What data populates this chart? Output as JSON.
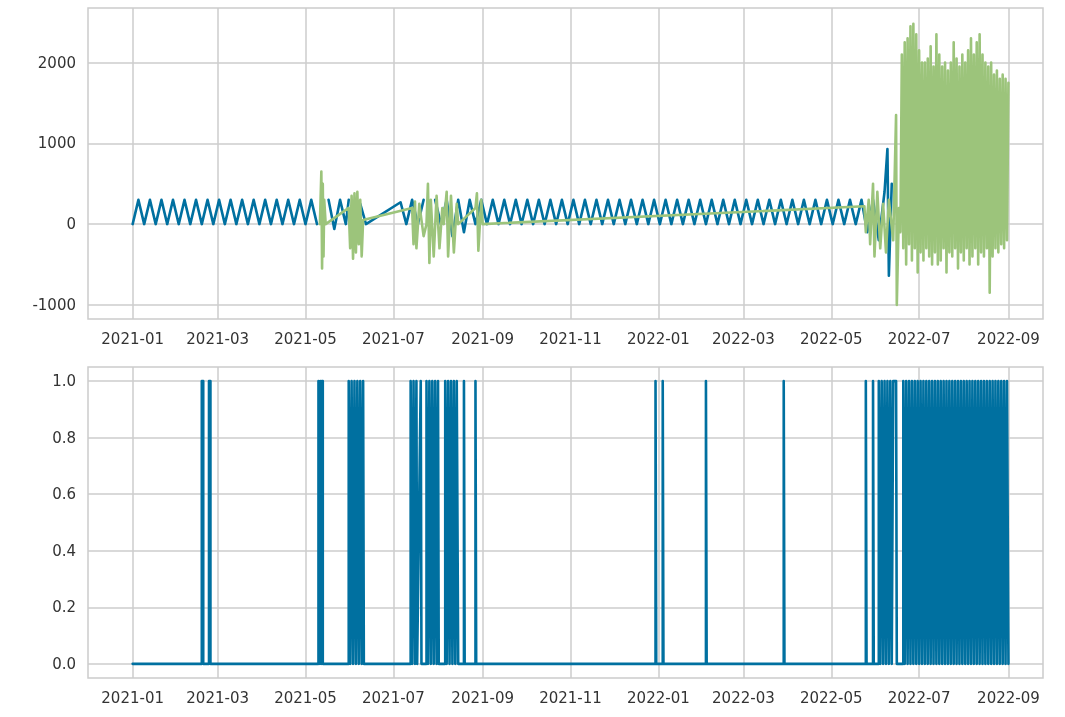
{
  "chart_data": [
    {
      "type": "line",
      "grid": true,
      "marker": "none",
      "xlim": [
        "2020-12-01",
        "2022-09-25"
      ],
      "xticks": [
        "2021-01",
        "2021-03",
        "2021-05",
        "2021-07",
        "2021-09",
        "2021-11",
        "2022-01",
        "2022-03",
        "2022-05",
        "2022-07",
        "2022-09"
      ],
      "ylim": [
        -1175,
        2675
      ],
      "yticks": [
        -1000,
        0,
        1000,
        2000
      ],
      "series": [
        {
          "color": "#0070a0",
          "x": [
            "2021-01-01",
            "2021-01-05",
            "2021-01-09",
            "2021-01-13",
            "2021-01-17",
            "2021-01-21",
            "2021-01-25",
            "2021-01-29",
            "2021-02-02",
            "2021-02-06",
            "2021-02-10",
            "2021-02-14",
            "2021-02-18",
            "2021-02-22",
            "2021-02-26",
            "2021-03-02",
            "2021-03-06",
            "2021-03-10",
            "2021-03-14",
            "2021-03-18",
            "2021-03-22",
            "2021-03-26",
            "2021-03-30",
            "2021-04-03",
            "2021-04-07",
            "2021-04-11",
            "2021-04-15",
            "2021-04-19",
            "2021-04-23",
            "2021-04-27",
            "2021-05-01",
            "2021-05-05",
            "2021-05-09",
            "2021-05-13",
            "2021-05-17",
            "2021-05-21",
            "2021-05-25",
            "2021-05-29",
            "2021-05-31",
            "2021-06-04",
            "2021-06-08",
            "2021-06-12",
            "2021-07-06",
            "2021-07-10",
            "2021-07-14",
            "2021-07-18",
            "2021-07-22",
            "2021-07-26",
            "2021-07-30",
            "2021-08-03",
            "2021-08-07",
            "2021-08-11",
            "2021-08-15",
            "2021-08-19",
            "2021-08-23",
            "2021-08-27",
            "2021-08-31",
            "2021-09-04",
            "2021-09-08",
            "2021-09-12",
            "2021-09-16",
            "2021-09-20",
            "2021-09-24",
            "2021-09-28",
            "2021-10-02",
            "2021-10-06",
            "2021-10-10",
            "2021-10-14",
            "2021-10-18",
            "2021-10-22",
            "2021-10-26",
            "2021-10-30",
            "2021-11-03",
            "2021-11-07",
            "2021-11-11",
            "2021-11-15",
            "2021-11-19",
            "2021-11-23",
            "2021-11-27",
            "2021-12-01",
            "2021-12-05",
            "2021-12-09",
            "2021-12-13",
            "2021-12-17",
            "2021-12-21",
            "2021-12-25",
            "2021-12-29",
            "2022-01-02",
            "2022-01-06",
            "2022-01-10",
            "2022-01-14",
            "2022-01-18",
            "2022-01-22",
            "2022-01-26",
            "2022-01-30",
            "2022-02-03",
            "2022-02-07",
            "2022-02-11",
            "2022-02-15",
            "2022-02-19",
            "2022-02-23",
            "2022-02-27",
            "2022-03-03",
            "2022-03-07",
            "2022-03-11",
            "2022-03-15",
            "2022-03-19",
            "2022-03-23",
            "2022-03-27",
            "2022-03-31",
            "2022-04-04",
            "2022-04-08",
            "2022-04-12",
            "2022-04-16",
            "2022-04-20",
            "2022-04-24",
            "2022-04-28",
            "2022-05-02",
            "2022-05-06",
            "2022-05-10",
            "2022-05-14",
            "2022-05-18",
            "2022-05-22",
            "2022-05-26",
            "2022-05-30",
            "2022-06-03",
            "2022-06-07",
            "2022-06-09",
            "2022-06-10",
            "2022-06-12"
          ],
          "values": [
            0,
            300,
            0,
            300,
            0,
            300,
            0,
            300,
            0,
            300,
            0,
            300,
            0,
            300,
            0,
            300,
            0,
            300,
            0,
            300,
            0,
            300,
            0,
            300,
            0,
            300,
            0,
            300,
            0,
            300,
            0,
            300,
            0,
            null,
            300,
            -60,
            300,
            0,
            300,
            null,
            250,
            0,
            270,
            0,
            300,
            0,
            300,
            null,
            300,
            0,
            300,
            -150,
            300,
            -100,
            300,
            0,
            300,
            0,
            300,
            0,
            300,
            0,
            300,
            0,
            300,
            0,
            300,
            0,
            300,
            0,
            300,
            0,
            300,
            0,
            300,
            0,
            300,
            0,
            300,
            0,
            300,
            0,
            300,
            0,
            300,
            0,
            300,
            0,
            300,
            0,
            300,
            0,
            300,
            0,
            300,
            0,
            300,
            0,
            300,
            0,
            300,
            0,
            300,
            0,
            300,
            0,
            300,
            0,
            300,
            0,
            300,
            0,
            300,
            0,
            300,
            0,
            300,
            0,
            300,
            0,
            300,
            0,
            300,
            -100,
            300,
            -200,
            400,
            930,
            -640,
            500
          ]
        },
        {
          "color": "#9cc47b",
          "x": [
            "2021-05-11",
            "2021-05-12",
            "2021-05-12T12:00",
            "2021-05-13",
            "2021-05-13T12:00",
            "2021-05-14",
            "2021-05-15",
            "2021-05-31",
            "2021-06-01",
            "2021-06-02",
            "2021-06-03",
            "2021-06-04",
            "2021-06-05",
            "2021-06-06",
            "2021-06-07",
            "2021-06-08",
            "2021-06-09",
            "2021-06-10",
            "2021-07-14",
            "2021-07-15",
            "2021-07-16",
            "2021-07-17",
            "2021-07-19",
            "2021-07-22",
            "2021-07-24",
            "2021-07-25",
            "2021-07-26",
            "2021-07-27",
            "2021-07-29",
            "2021-07-31",
            "2021-08-02",
            "2021-08-04",
            "2021-08-05",
            "2021-08-07",
            "2021-08-08",
            "2021-08-10",
            "2021-08-12",
            "2021-08-14",
            "2021-08-15",
            "2021-08-27",
            "2021-08-28",
            "2021-08-29",
            "2021-08-31",
            "2021-09-01",
            "2022-05-24",
            "2022-05-25",
            "2022-05-27",
            "2022-05-28",
            "2022-05-30",
            "2022-05-31",
            "2022-06-02",
            "2022-06-04",
            "2022-06-06",
            "2022-06-08",
            "2022-06-10",
            "2022-06-13",
            "2022-06-15",
            "2022-06-15T12:00",
            "2022-06-17",
            "2022-06-18",
            "2022-06-19",
            "2022-06-20",
            "2022-06-21",
            "2022-06-22",
            "2022-06-23",
            "2022-06-24",
            "2022-06-25",
            "2022-06-26",
            "2022-06-27",
            "2022-06-28",
            "2022-06-29",
            "2022-06-30",
            "2022-07-01",
            "2022-07-02",
            "2022-07-03",
            "2022-07-04",
            "2022-07-05",
            "2022-07-06",
            "2022-07-07",
            "2022-07-08",
            "2022-07-09",
            "2022-07-10",
            "2022-07-11",
            "2022-07-12",
            "2022-07-13",
            "2022-07-14",
            "2022-07-15",
            "2022-07-16",
            "2022-07-17",
            "2022-07-18",
            "2022-07-19",
            "2022-07-20",
            "2022-07-21",
            "2022-07-22",
            "2022-07-23",
            "2022-07-24",
            "2022-07-25",
            "2022-07-26",
            "2022-07-27",
            "2022-07-28",
            "2022-07-29",
            "2022-07-30",
            "2022-07-31",
            "2022-08-01",
            "2022-08-02",
            "2022-08-03",
            "2022-08-04",
            "2022-08-05",
            "2022-08-06",
            "2022-08-07",
            "2022-08-08",
            "2022-08-09",
            "2022-08-10",
            "2022-08-11",
            "2022-08-12",
            "2022-08-13",
            "2022-08-14",
            "2022-08-15",
            "2022-08-16",
            "2022-08-17",
            "2022-08-18",
            "2022-08-19",
            "2022-08-20",
            "2022-08-21",
            "2022-08-22",
            "2022-08-23",
            "2022-08-24",
            "2022-08-25",
            "2022-08-26",
            "2022-08-27",
            "2022-08-28",
            "2022-08-29",
            "2022-08-30",
            "2022-08-31",
            "2022-09-01"
          ],
          "values": [
            0,
            650,
            -550,
            500,
            -400,
            300,
            0,
            200,
            -300,
            350,
            -430,
            380,
            -350,
            400,
            -250,
            300,
            -400,
            50,
            200,
            -250,
            280,
            -300,
            250,
            -150,
            0,
            500,
            -480,
            300,
            -400,
            350,
            -300,
            200,
            0,
            400,
            -400,
            350,
            -350,
            250,
            0,
            200,
            380,
            -330,
            300,
            0,
            220,
            -100,
            300,
            -250,
            500,
            -400,
            400,
            -300,
            250,
            -350,
            300,
            -200,
            1350,
            -1000,
            200,
            -100,
            2100,
            -300,
            2250,
            -500,
            2300,
            -250,
            2450,
            -450,
            2480,
            -300,
            2350,
            -600,
            2150,
            -350,
            2000,
            -450,
            2000,
            -300,
            2050,
            -400,
            2200,
            -500,
            1950,
            -350,
            2350,
            -500,
            2100,
            -450,
            1950,
            -300,
            2000,
            -600,
            1900,
            -350,
            2000,
            -400,
            2250,
            -300,
            2050,
            -550,
            1950,
            -350,
            2100,
            -450,
            2000,
            -300,
            2150,
            -500,
            2300,
            -400,
            2100,
            -300,
            2250,
            -500,
            2350,
            -350,
            2100,
            -400,
            2000,
            -300,
            1950,
            -850,
            2000,
            -400,
            1850,
            -300,
            1900,
            -350,
            1800,
            -250,
            1850,
            -300,
            1800,
            -200,
            1750
          ]
        }
      ]
    },
    {
      "type": "line",
      "grid": true,
      "marker": "none",
      "xlim": [
        "2020-12-01",
        "2022-09-25"
      ],
      "xticks": [
        "2021-01",
        "2021-03",
        "2021-05",
        "2021-07",
        "2021-09",
        "2021-11",
        "2022-01",
        "2022-03",
        "2022-05",
        "2022-07",
        "2022-09"
      ],
      "ylim": [
        -0.05,
        1.05
      ],
      "yticks": [
        {
          "value": 0,
          "label": "0.0"
        },
        0.2,
        0.4,
        0.6,
        0.8,
        {
          "value": 1,
          "label": "1.0"
        }
      ],
      "series": [
        {
          "color": "#0070a0",
          "x": [
            "2021-01-01",
            "2021-02-18",
            "2021-02-18",
            "2021-02-19",
            "2021-02-19",
            "2021-02-23",
            "2021-02-23",
            "2021-02-24",
            "2021-02-24",
            "2021-05-10",
            "2021-05-10",
            "2021-05-11",
            "2021-05-11T12:00",
            "2021-05-12",
            "2021-05-12T12:00",
            "2021-05-13",
            "2021-05-13",
            "2021-05-31",
            "2021-05-31",
            "2021-06-01",
            "2021-06-02",
            "2021-06-03",
            "2021-06-04",
            "2021-06-05",
            "2021-06-06",
            "2021-06-07",
            "2021-06-08",
            "2021-06-09",
            "2021-06-10",
            "2021-06-10T12:00",
            "2021-07-13",
            "2021-07-13",
            "2021-07-14",
            "2021-07-15",
            "2021-07-16",
            "2021-07-17",
            "2021-07-17T12:00",
            "2021-07-20",
            "2021-07-20T12:00",
            "2021-07-24",
            "2021-07-24",
            "2021-07-25",
            "2021-07-26",
            "2021-07-27",
            "2021-07-28",
            "2021-07-29",
            "2021-07-30",
            "2021-07-31",
            "2021-08-01",
            "2021-08-01T12:00",
            "2021-08-06",
            "2021-08-06",
            "2021-08-07",
            "2021-08-08",
            "2021-08-09",
            "2021-08-10",
            "2021-08-11",
            "2021-08-12",
            "2021-08-13",
            "2021-08-14",
            "2021-08-15",
            "2021-08-19",
            "2021-08-19",
            "2021-08-19T12:00",
            "2021-08-27",
            "2021-08-27",
            "2021-08-27T12:00",
            "2021-12-30",
            "2021-12-30",
            "2021-12-30T12:00",
            "2022-01-04",
            "2022-01-04",
            "2022-01-04T12:00",
            "2022-02-03",
            "2022-02-03",
            "2022-02-03T12:00",
            "2022-03-29",
            "2022-03-29",
            "2022-03-29T12:00",
            "2022-05-25",
            "2022-05-25",
            "2022-05-25T12:00",
            "2022-05-30",
            "2022-05-30",
            "2022-05-30T12:00",
            "2022-06-03",
            "2022-06-03",
            "2022-06-04",
            "2022-06-05",
            "2022-06-06",
            "2022-06-07",
            "2022-06-08",
            "2022-06-09",
            "2022-06-10",
            "2022-06-11",
            "2022-06-12",
            "2022-06-13",
            "2022-06-15",
            "2022-06-15T12:00",
            "2022-06-20",
            "2022-06-20",
            "2022-06-21",
            "2022-06-22",
            "2022-06-23",
            "2022-06-24",
            "2022-06-25",
            "2022-06-26",
            "2022-06-27",
            "2022-06-28",
            "2022-06-29",
            "2022-06-30",
            "2022-07-01",
            "2022-07-02",
            "2022-07-03",
            "2022-07-04",
            "2022-07-05",
            "2022-07-06",
            "2022-07-07",
            "2022-07-08",
            "2022-07-09",
            "2022-07-10",
            "2022-07-11",
            "2022-07-12",
            "2022-07-13",
            "2022-07-14",
            "2022-07-15",
            "2022-07-16",
            "2022-07-17",
            "2022-07-18",
            "2022-07-19",
            "2022-07-20",
            "2022-07-21",
            "2022-07-22",
            "2022-07-23",
            "2022-07-24",
            "2022-07-25",
            "2022-07-26",
            "2022-07-27",
            "2022-07-28",
            "2022-07-29",
            "2022-07-30",
            "2022-07-31",
            "2022-08-01",
            "2022-08-02",
            "2022-08-03",
            "2022-08-04",
            "2022-08-05",
            "2022-08-06",
            "2022-08-07",
            "2022-08-08",
            "2022-08-09",
            "2022-08-10",
            "2022-08-11",
            "2022-08-12",
            "2022-08-13",
            "2022-08-14",
            "2022-08-15",
            "2022-08-16",
            "2022-08-17",
            "2022-08-18",
            "2022-08-19",
            "2022-08-20",
            "2022-08-21",
            "2022-08-22",
            "2022-08-23",
            "2022-08-24",
            "2022-08-25",
            "2022-08-26",
            "2022-08-27",
            "2022-08-28",
            "2022-08-29",
            "2022-08-30",
            "2022-08-31",
            "2022-09-01"
          ],
          "values": [
            0,
            0,
            1,
            1,
            0,
            0,
            1,
            1,
            0,
            0,
            1,
            0,
            1,
            0,
            1,
            1,
            0,
            0,
            1,
            0,
            1,
            0,
            1,
            0,
            1,
            0,
            1,
            0,
            1,
            0,
            0,
            1,
            0,
            1,
            0,
            1,
            0,
            1,
            0,
            0,
            1,
            0,
            1,
            0,
            1,
            0,
            1,
            0,
            1,
            0,
            0,
            1,
            0,
            1,
            0,
            1,
            0,
            1,
            0,
            1,
            0,
            0,
            1,
            0,
            0,
            1,
            0,
            0,
            1,
            0,
            0,
            1,
            0,
            0,
            1,
            0,
            0,
            1,
            0,
            0,
            1,
            0,
            0,
            1,
            0,
            0,
            1,
            0,
            1,
            0,
            1,
            0,
            1,
            0,
            1,
            0,
            1,
            1,
            0,
            0,
            1,
            0,
            1,
            0,
            1,
            0,
            1,
            0,
            1,
            0,
            1,
            0,
            1,
            0,
            1,
            0,
            1,
            0,
            1,
            0,
            1,
            0,
            1,
            0,
            1,
            0,
            1,
            0,
            1,
            0,
            1,
            0,
            1,
            0,
            1,
            0,
            1,
            0,
            1,
            0,
            1,
            0,
            1,
            0,
            1,
            0,
            1,
            0,
            1,
            0,
            1,
            0,
            1,
            0,
            1,
            0,
            1,
            0,
            1,
            0,
            1,
            0,
            1,
            0,
            1,
            0,
            1,
            0,
            1,
            0,
            1,
            0,
            1,
            0
          ]
        }
      ]
    }
  ]
}
